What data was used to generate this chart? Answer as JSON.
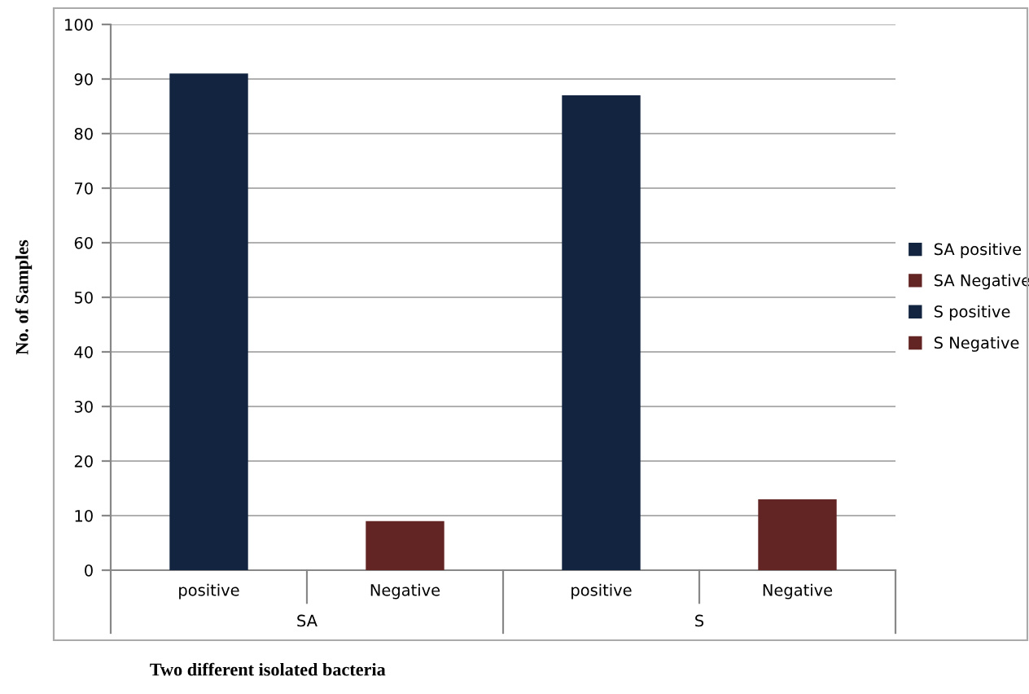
{
  "chart_data": {
    "type": "bar",
    "categories": [
      "positive",
      "Negative",
      "positive",
      "Negative"
    ],
    "series": [
      {
        "name": "SA positive",
        "color": "#12243f",
        "values": [
          91,
          null,
          null,
          null
        ]
      },
      {
        "name": "SA Negative",
        "color": "#632523",
        "values": [
          null,
          9,
          null,
          null
        ]
      },
      {
        "name": "S positive",
        "color": "#12243f",
        "values": [
          null,
          null,
          87,
          null
        ]
      },
      {
        "name": "S Negative",
        "color": "#632523",
        "values": [
          null,
          null,
          null,
          13
        ]
      }
    ],
    "xlabel": "Two different isolated bacteria",
    "ylabel": "No. of Samples",
    "annotations": [
      "SA",
      "S"
    ],
    "ylim": [
      0,
      100
    ],
    "yticks": [
      0,
      10,
      20,
      30,
      40,
      50,
      60,
      70,
      80,
      90,
      100
    ],
    "grid": "y",
    "legend": "right"
  }
}
